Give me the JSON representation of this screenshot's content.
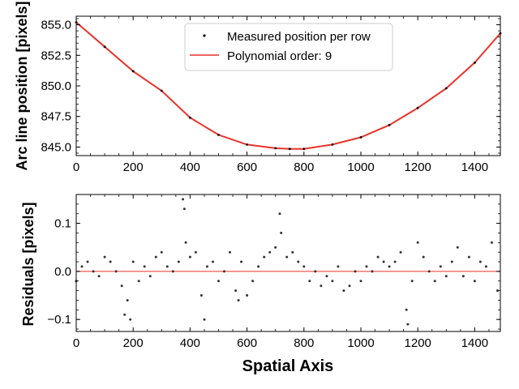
{
  "chart_data": [
    {
      "type": "scatter",
      "ylabel": "Arc line position  [pixels]",
      "xlim": [
        0,
        1490
      ],
      "ylim": [
        844.3,
        855.7
      ],
      "xticks": [
        0,
        200,
        400,
        600,
        800,
        1000,
        1200,
        1400
      ],
      "xtick_labels": [
        "0",
        "200",
        "400",
        "600",
        "800",
        "1000",
        "1200",
        "1400"
      ],
      "yticks": [
        845.0,
        847.5,
        850.0,
        852.5,
        855.0
      ],
      "ytick_labels": [
        "845.0",
        "847.5",
        "850.0",
        "852.5",
        "855.0"
      ],
      "grid": false,
      "legend_position": "top-center",
      "series": [
        {
          "name": "Measured position per row",
          "style": "points",
          "color": "#000000",
          "x": [
            0,
            100,
            200,
            300,
            400,
            500,
            600,
            700,
            750,
            800,
            900,
            1000,
            1100,
            1200,
            1300,
            1400,
            1490
          ],
          "y": [
            855.2,
            853.2,
            851.2,
            849.6,
            847.4,
            846.0,
            845.2,
            844.9,
            844.85,
            844.85,
            845.2,
            845.8,
            846.8,
            848.2,
            849.8,
            851.9,
            854.3
          ]
        },
        {
          "name": "Polynomial order: 9",
          "style": "line",
          "color": "#e8332a",
          "x": [
            0,
            100,
            200,
            300,
            400,
            500,
            600,
            700,
            750,
            800,
            900,
            1000,
            1100,
            1200,
            1300,
            1400,
            1490
          ],
          "y": [
            855.2,
            853.2,
            851.2,
            849.6,
            847.4,
            846.0,
            845.2,
            844.9,
            844.85,
            844.85,
            845.2,
            845.8,
            846.8,
            848.2,
            849.8,
            851.9,
            854.3
          ]
        }
      ]
    },
    {
      "type": "scatter",
      "xlabel": "Spatial Axis",
      "ylabel": "Residuals  [pixels]",
      "xlim": [
        0,
        1490
      ],
      "ylim": [
        -0.125,
        0.16
      ],
      "xticks": [
        0,
        200,
        400,
        600,
        800,
        1000,
        1200,
        1400
      ],
      "xtick_labels": [
        "0",
        "200",
        "400",
        "600",
        "800",
        "1000",
        "1200",
        "1400"
      ],
      "yticks": [
        -0.1,
        0.0,
        0.1
      ],
      "ytick_labels": [
        "−0.1",
        "0.0",
        "0.1"
      ],
      "grid": false,
      "reference_line": {
        "y": 0.0,
        "color": "#e8332a"
      },
      "series": [
        {
          "name": "",
          "color": "#333333",
          "x": [
            0,
            20,
            40,
            60,
            80,
            100,
            120,
            140,
            160,
            170,
            180,
            190,
            200,
            220,
            240,
            260,
            280,
            300,
            320,
            340,
            360,
            375,
            380,
            385,
            400,
            420,
            440,
            450,
            460,
            480,
            500,
            520,
            540,
            560,
            570,
            580,
            600,
            620,
            640,
            660,
            680,
            700,
            715,
            720,
            740,
            760,
            780,
            800,
            820,
            840,
            860,
            880,
            900,
            920,
            940,
            960,
            980,
            1000,
            1020,
            1040,
            1060,
            1080,
            1100,
            1120,
            1140,
            1160,
            1165,
            1180,
            1200,
            1220,
            1240,
            1260,
            1280,
            1300,
            1320,
            1340,
            1360,
            1380,
            1400,
            1420,
            1440,
            1460,
            1480
          ],
          "y": [
            -0.02,
            0.01,
            0.02,
            0.0,
            -0.01,
            0.03,
            0.02,
            0.0,
            -0.03,
            -0.09,
            -0.06,
            -0.1,
            0.02,
            -0.02,
            0.01,
            -0.01,
            0.03,
            0.04,
            0.01,
            0.0,
            0.02,
            0.15,
            0.13,
            0.06,
            0.03,
            0.04,
            -0.05,
            -0.1,
            0.01,
            0.02,
            -0.02,
            0.0,
            0.04,
            -0.04,
            -0.06,
            0.02,
            -0.05,
            -0.02,
            0.01,
            0.03,
            0.04,
            0.05,
            0.12,
            0.08,
            0.03,
            0.04,
            0.02,
            0.01,
            -0.02,
            0.0,
            -0.03,
            -0.01,
            -0.02,
            0.01,
            -0.04,
            -0.03,
            0.0,
            -0.02,
            0.01,
            0.0,
            0.03,
            0.02,
            0.01,
            0.02,
            0.04,
            -0.08,
            -0.11,
            -0.02,
            0.06,
            0.03,
            0.0,
            -0.02,
            0.01,
            -0.01,
            0.02,
            0.05,
            -0.01,
            0.03,
            -0.02,
            0.02,
            0.01,
            0.06,
            -0.04
          ]
        }
      ]
    }
  ]
}
